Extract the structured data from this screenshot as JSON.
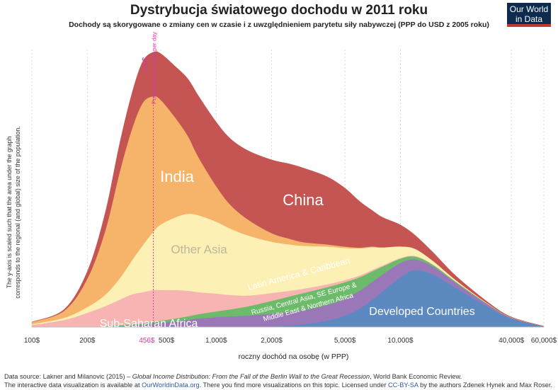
{
  "header": {
    "title": "Dystrybucja światowego dochodu w 2011 roku",
    "subtitle": "Dochody są skorygowane o zmiany cen w czasie i z uwzględnieniem parytetu siły nabywczej (PPP do USD z 2005 roku)",
    "logo_line1": "Our World",
    "logo_line2": "in Data"
  },
  "colors": {
    "developed": "#5b89c0",
    "russia": "#9a78b8",
    "latam": "#6cbb6a",
    "other_asia": "#fdf0b4",
    "india": "#f6b36a",
    "china": "#c45552",
    "ssa": "#f7b4b3",
    "poverty": "#d1409a"
  },
  "chart_data": {
    "type": "area",
    "stacked": true,
    "xscale": "log",
    "xlabel": "roczny dochód na osobę (w PPP)",
    "ylabel_line1": "The y-axis is scaled such that the area under the graph",
    "ylabel_line2": "corresponds to the regional (and global) size of the population.",
    "xlim": [
      100,
      60000
    ],
    "x": [
      100,
      150,
      200,
      250,
      300,
      350,
      400,
      456,
      500,
      600,
      700,
      800,
      1000,
      1200,
      1500,
      2000,
      2500,
      3000,
      4000,
      5000,
      6000,
      7000,
      8000,
      10000,
      12000,
      15000,
      20000,
      30000,
      40000,
      60000
    ],
    "series": [
      {
        "name": "Developed Countries",
        "key": "developed",
        "values": [
          0,
          0,
          0,
          0,
          0,
          0,
          0,
          0,
          0,
          0,
          0,
          0,
          0,
          0,
          0.3,
          0.8,
          2,
          4,
          9,
          16,
          26,
          38,
          50,
          70,
          80,
          74,
          55,
          28,
          12,
          1
        ]
      },
      {
        "name": "Russia, Central Asia, SE Europe & Middle East & Northern Africa",
        "key": "russia",
        "values": [
          0,
          0,
          0,
          0.3,
          1,
          2,
          3,
          5,
          6,
          8,
          10,
          12,
          14,
          15,
          16,
          18,
          19,
          20,
          22,
          24,
          25,
          25,
          24,
          20,
          15,
          11,
          7,
          3,
          1,
          0
        ]
      },
      {
        "name": "Latin America & Caribbean",
        "key": "latam",
        "values": [
          0,
          0,
          0,
          1,
          1.5,
          2,
          2,
          3,
          3,
          4,
          5,
          6,
          8,
          10,
          13,
          18,
          22,
          24,
          25,
          23,
          19,
          15,
          11,
          6,
          4,
          2.5,
          1.5,
          0.8,
          0.4,
          0
        ]
      },
      {
        "name": "Sub-Saharan Africa",
        "key": "ssa",
        "values": [
          3,
          10,
          20,
          28,
          36,
          42,
          44,
          44,
          43,
          40,
          36,
          31,
          25,
          20,
          15,
          11,
          8,
          6,
          4,
          3,
          2.5,
          2,
          1.5,
          1,
          0.8,
          0.5,
          0.3,
          0.1,
          0,
          0
        ]
      },
      {
        "name": "Other Asia",
        "key": "other_asia",
        "values": [
          1,
          3,
          8,
          16,
          30,
          48,
          66,
          82,
          92,
          102,
          108,
          108,
          101,
          93,
          84,
          72,
          65,
          60,
          53,
          45,
          38,
          32,
          25,
          16,
          10,
          5,
          2,
          0.5,
          0.2,
          0
        ]
      },
      {
        "name": "India",
        "key": "india",
        "values": [
          3,
          10,
          40,
          90,
          150,
          185,
          200,
          190,
          175,
          140,
          110,
          82,
          50,
          33,
          22,
          12,
          8,
          5,
          3,
          2,
          1,
          1,
          0.5,
          0.3,
          0.1,
          0,
          0,
          0,
          0,
          0
        ]
      },
      {
        "name": "China",
        "key": "china",
        "values": [
          0,
          2,
          10,
          25,
          40,
          50,
          58,
          62,
          65,
          72,
          80,
          86,
          90,
          93,
          97,
          103,
          105,
          104,
          95,
          82,
          65,
          51,
          42,
          30,
          19,
          12,
          6,
          2,
          0.5,
          0
        ]
      }
    ],
    "labels": {
      "india": "India",
      "china": "China",
      "other_asia": "Other Asia",
      "latam": "Latin America & Caribbean",
      "russia_line1": "Russia, Central Asia, SE Europe &",
      "russia_line2": "Middle East & Northern Africa",
      "ssa": "Sub-Saharan Africa",
      "developed": "Developed Countries"
    },
    "ticks": [
      {
        "value": 100,
        "label": "100$"
      },
      {
        "value": 200,
        "label": "200$"
      },
      {
        "value": 456,
        "label": "456$",
        "highlight": true
      },
      {
        "value": 500,
        "label": "500$"
      },
      {
        "value": 1000,
        "label": "1,000$"
      },
      {
        "value": 2000,
        "label": "2,000$"
      },
      {
        "value": 5000,
        "label": "5,000$"
      },
      {
        "value": 10000,
        "label": "10,000$"
      },
      {
        "value": 40000,
        "label": "40,000$"
      },
      {
        "value": 60000,
        "label": "60,000$"
      }
    ],
    "poverty_line": {
      "value": 456,
      "label": "456$",
      "sublabel": "Poverty line of 1.25$ per day"
    }
  },
  "footer": {
    "line1_a": "Data source: Lakner and Milanovic (2015) – ",
    "line1_title": "Global Income Distribution: From the Fall of the Berlin Wall to the Great Recession",
    "line1_b": ", World Bank Economic Review.",
    "line2_a": "The interactive data visualization is available at ",
    "line2_link": "OurWorldinData.org",
    "line2_b": ". There you find more visualizations on this topic.",
    "license_a": "Licensed under ",
    "license_link": "CC-BY-SA",
    "license_b": " by the authors Zdenek Hynek and Max Roser."
  }
}
